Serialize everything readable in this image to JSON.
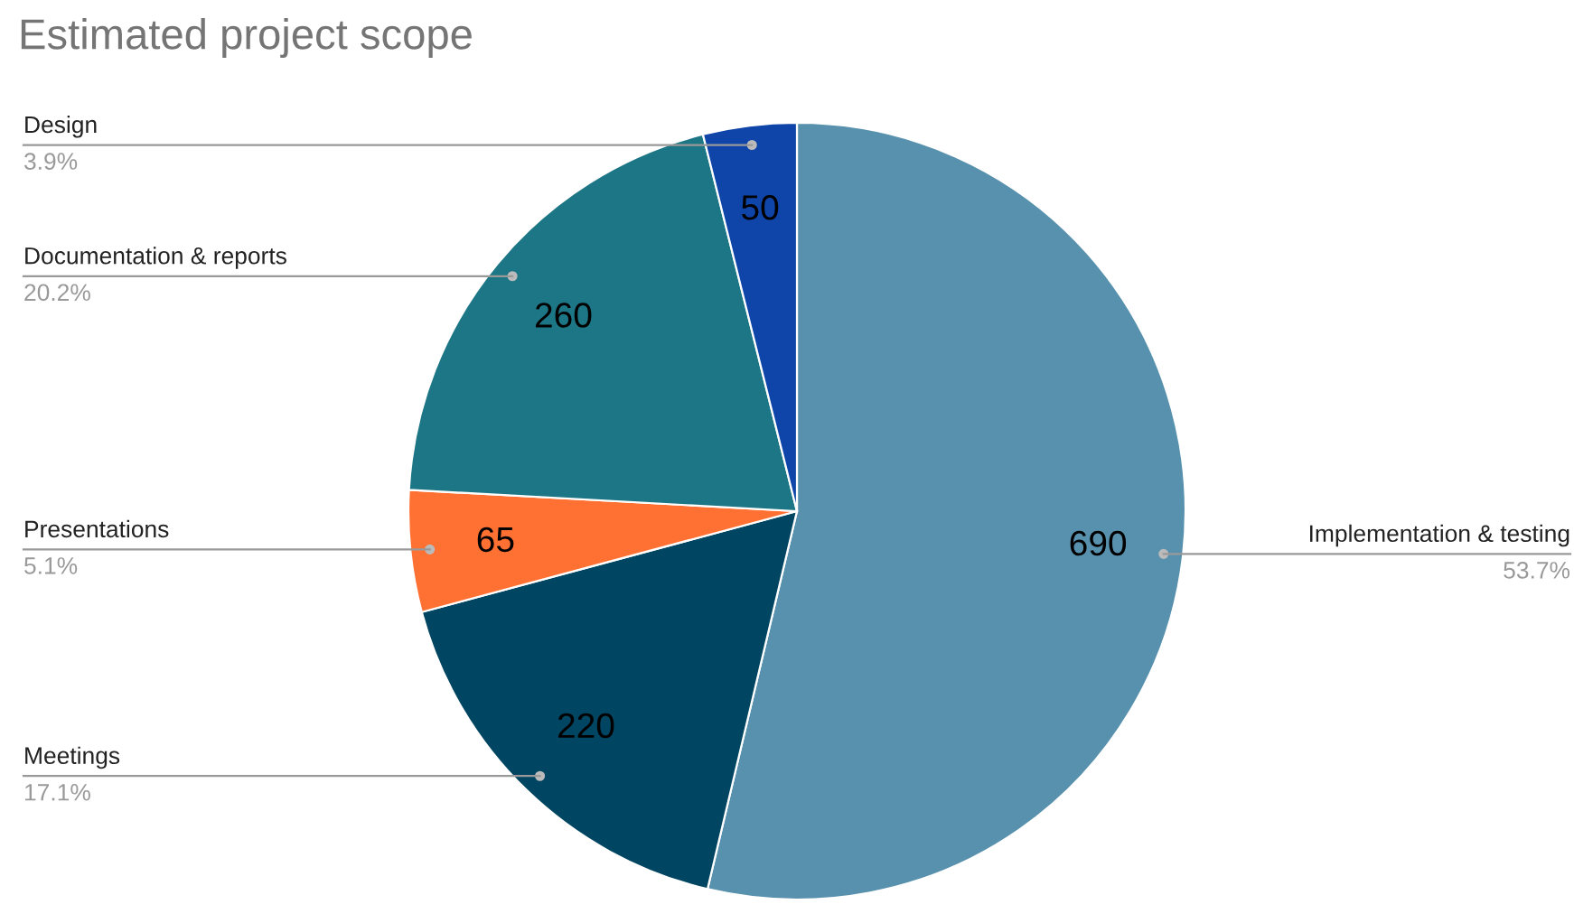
{
  "chart_data": {
    "type": "pie",
    "title": "Estimated project scope",
    "categories": [
      "Implementation & testing",
      "Meetings",
      "Presentations",
      "Documentation & reports",
      "Design"
    ],
    "values": [
      690,
      220,
      65,
      260,
      50
    ],
    "colors": [
      "#5891ad",
      "#004561",
      "#ff7033",
      "#1c7685",
      "#0f45a8"
    ],
    "data_labels": true,
    "value_labels": [
      "690",
      "220",
      "65",
      "260",
      "50"
    ],
    "annotations": [
      "53.7%",
      "17.1%",
      "5.1%",
      "20.2%",
      "3.9%"
    ],
    "legend": false
  }
}
